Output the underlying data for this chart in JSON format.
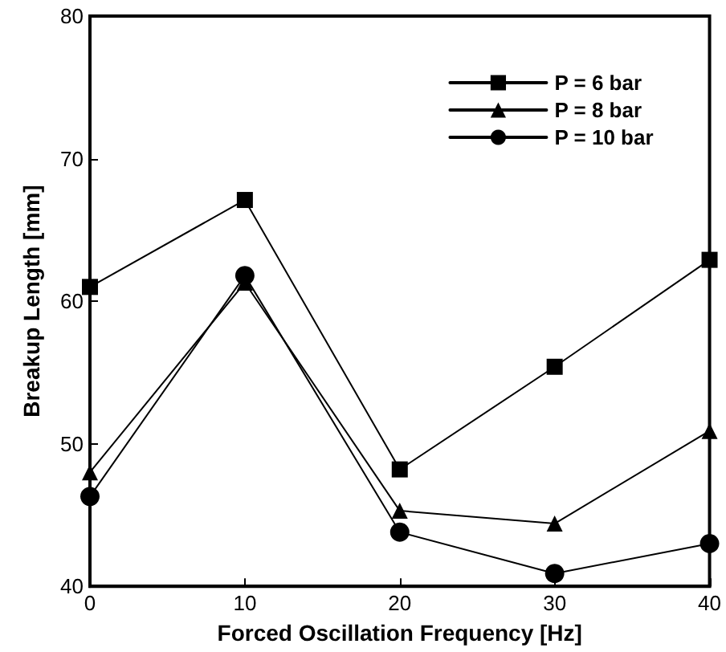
{
  "chart_data": {
    "type": "line",
    "xlabel": "Forced Oscillation Frequency [Hz]",
    "ylabel": "Breakup Length [mm]",
    "x": [
      0,
      10,
      20,
      30,
      40
    ],
    "xlim": [
      0,
      40
    ],
    "xticks": [
      0,
      10,
      20,
      30,
      40
    ],
    "ylim": [
      40,
      80
    ],
    "yticks": [
      40,
      50,
      60,
      70,
      80
    ],
    "grid": false,
    "legend": "top right",
    "series": [
      {
        "name": "P = 6 bar",
        "color": "#000000",
        "marker": "square",
        "values": [
          61.0,
          67.1,
          48.2,
          55.4,
          62.9
        ]
      },
      {
        "name": "P = 8 bar",
        "color": "#000000",
        "marker": "triangle",
        "values": [
          48.0,
          61.3,
          45.3,
          44.4,
          50.9
        ]
      },
      {
        "name": "P = 10 bar",
        "color": "#000000",
        "marker": "circle",
        "values": [
          46.3,
          61.8,
          43.8,
          40.9,
          43.0
        ]
      }
    ]
  }
}
